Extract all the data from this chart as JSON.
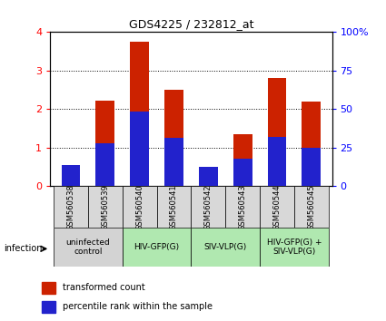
{
  "title": "GDS4225 / 232812_at",
  "samples": [
    "GSM560538",
    "GSM560539",
    "GSM560540",
    "GSM560541",
    "GSM560542",
    "GSM560543",
    "GSM560544",
    "GSM560545"
  ],
  "red_values": [
    0.4,
    2.22,
    3.75,
    2.5,
    0.45,
    1.35,
    2.8,
    2.2
  ],
  "blue_values": [
    13.75,
    28.0,
    48.25,
    31.25,
    12.5,
    18.0,
    32.0,
    25.0
  ],
  "groups": [
    {
      "label": "uninfected\ncontrol",
      "start": 0,
      "end": 2,
      "color": "#d3d3d3"
    },
    {
      "label": "HIV-GFP(G)",
      "start": 2,
      "end": 4,
      "color": "#b0e8b0"
    },
    {
      "label": "SIV-VLP(G)",
      "start": 4,
      "end": 6,
      "color": "#b0e8b0"
    },
    {
      "label": "HIV-GFP(G) +\nSIV-VLP(G)",
      "start": 6,
      "end": 8,
      "color": "#b0e8b0"
    }
  ],
  "ylim_left": [
    0,
    4
  ],
  "ylim_right": [
    0,
    100
  ],
  "yticks_left": [
    0,
    1,
    2,
    3,
    4
  ],
  "yticks_right": [
    0,
    25,
    50,
    75,
    100
  ],
  "bar_color_red": "#cc2200",
  "bar_color_blue": "#2222cc",
  "infection_label": "infection",
  "legend_red": "transformed count",
  "legend_blue": "percentile rank within the sample",
  "group1_color": "#d3d3d3",
  "group2_color": "#b0e8b0",
  "sample_box_color": "#d8d8d8"
}
